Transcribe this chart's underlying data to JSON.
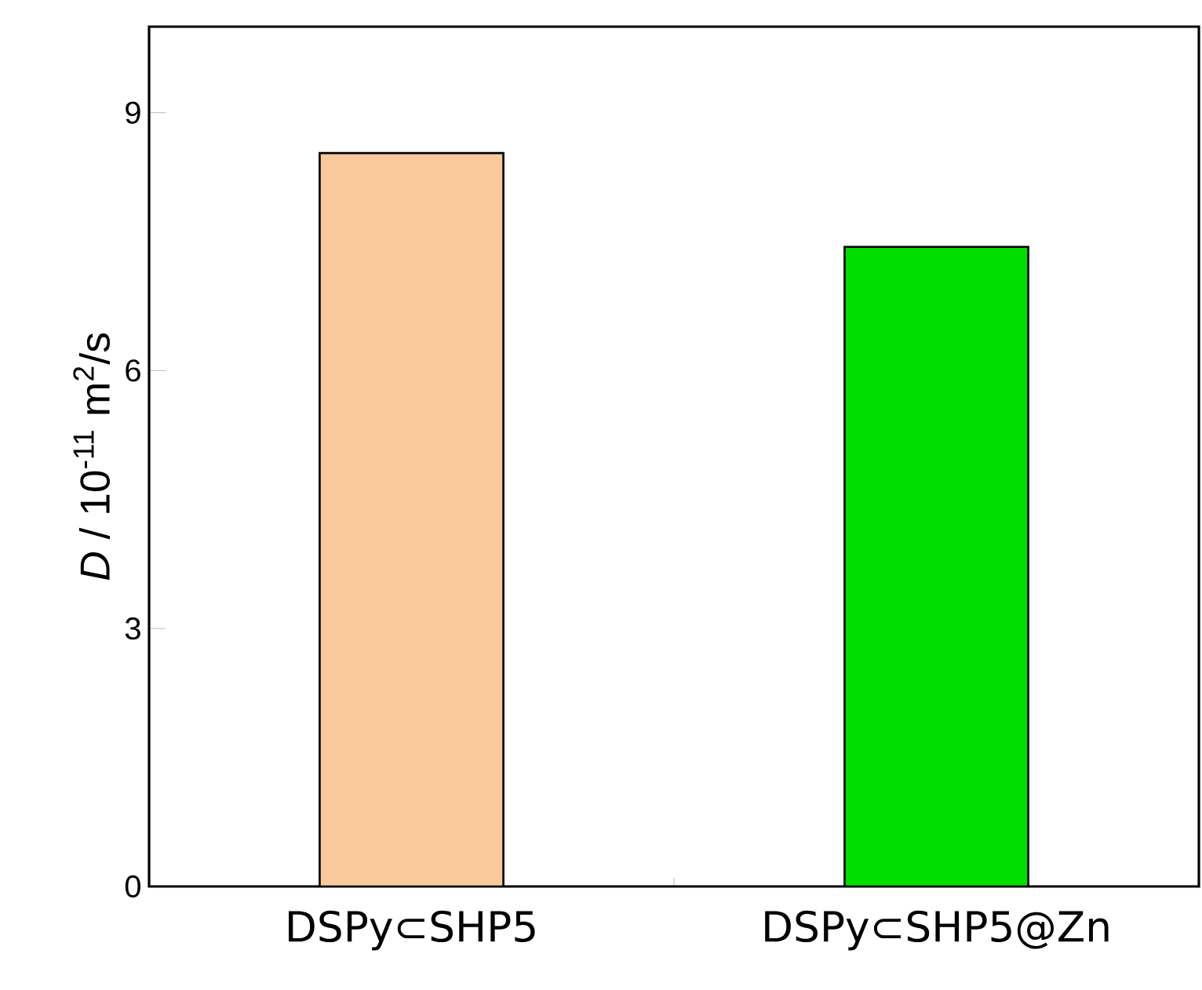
{
  "chart_data": {
    "type": "bar",
    "ylabel": "*D* / 10$^{-11}$ m$^{2}$/s",
    "categories": [
      "DSPy⊂SHP5",
      "DSPy⊂SHP5@Zn"
    ],
    "values": [
      8.53,
      7.44
    ],
    "colors": [
      "#f9c89b",
      "#00dd00"
    ],
    "ylim": [
      0,
      10
    ],
    "yticks": [
      0,
      3,
      6,
      9
    ],
    "grid": false
  }
}
